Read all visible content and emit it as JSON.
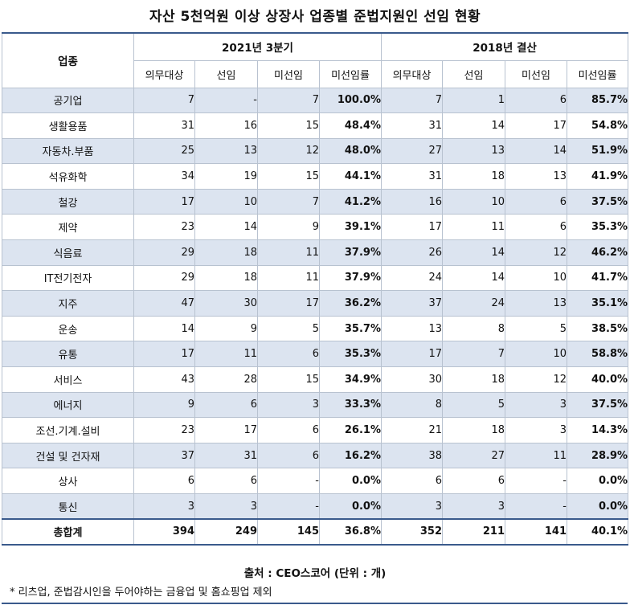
{
  "title": "자산 5천억원 이상 상장사 업종별 준법지원인 선임 현황",
  "header": {
    "industry": "업종",
    "period_2021": "2021년 3분기",
    "period_2018": "2018년 결산",
    "columns": [
      "의무대상",
      "선임",
      "미선임",
      "미선임률"
    ]
  },
  "rows": [
    {
      "name": "공기업",
      "a": [
        "7",
        "-",
        "7",
        "100.0%"
      ],
      "b": [
        "7",
        "1",
        "6",
        "85.7%"
      ]
    },
    {
      "name": "생활용품",
      "a": [
        "31",
        "16",
        "15",
        "48.4%"
      ],
      "b": [
        "31",
        "14",
        "17",
        "54.8%"
      ]
    },
    {
      "name": "자동차.부품",
      "a": [
        "25",
        "13",
        "12",
        "48.0%"
      ],
      "b": [
        "27",
        "13",
        "14",
        "51.9%"
      ]
    },
    {
      "name": "석유화학",
      "a": [
        "34",
        "19",
        "15",
        "44.1%"
      ],
      "b": [
        "31",
        "18",
        "13",
        "41.9%"
      ]
    },
    {
      "name": "철강",
      "a": [
        "17",
        "10",
        "7",
        "41.2%"
      ],
      "b": [
        "16",
        "10",
        "6",
        "37.5%"
      ]
    },
    {
      "name": "제약",
      "a": [
        "23",
        "14",
        "9",
        "39.1%"
      ],
      "b": [
        "17",
        "11",
        "6",
        "35.3%"
      ]
    },
    {
      "name": "식음료",
      "a": [
        "29",
        "18",
        "11",
        "37.9%"
      ],
      "b": [
        "26",
        "14",
        "12",
        "46.2%"
      ]
    },
    {
      "name": "IT전기전자",
      "a": [
        "29",
        "18",
        "11",
        "37.9%"
      ],
      "b": [
        "24",
        "14",
        "10",
        "41.7%"
      ]
    },
    {
      "name": "지주",
      "a": [
        "47",
        "30",
        "17",
        "36.2%"
      ],
      "b": [
        "37",
        "24",
        "13",
        "35.1%"
      ]
    },
    {
      "name": "운송",
      "a": [
        "14",
        "9",
        "5",
        "35.7%"
      ],
      "b": [
        "13",
        "8",
        "5",
        "38.5%"
      ]
    },
    {
      "name": "유통",
      "a": [
        "17",
        "11",
        "6",
        "35.3%"
      ],
      "b": [
        "17",
        "7",
        "10",
        "58.8%"
      ]
    },
    {
      "name": "서비스",
      "a": [
        "43",
        "28",
        "15",
        "34.9%"
      ],
      "b": [
        "30",
        "18",
        "12",
        "40.0%"
      ]
    },
    {
      "name": "에너지",
      "a": [
        "9",
        "6",
        "3",
        "33.3%"
      ],
      "b": [
        "8",
        "5",
        "3",
        "37.5%"
      ]
    },
    {
      "name": "조선.기계.설비",
      "a": [
        "23",
        "17",
        "6",
        "26.1%"
      ],
      "b": [
        "21",
        "18",
        "3",
        "14.3%"
      ]
    },
    {
      "name": "건설 및 건자재",
      "a": [
        "37",
        "31",
        "6",
        "16.2%"
      ],
      "b": [
        "38",
        "27",
        "11",
        "28.9%"
      ]
    },
    {
      "name": "상사",
      "a": [
        "6",
        "6",
        "-",
        "0.0%"
      ],
      "b": [
        "6",
        "6",
        "-",
        "0.0%"
      ]
    },
    {
      "name": "통신",
      "a": [
        "3",
        "3",
        "-",
        "0.0%"
      ],
      "b": [
        "3",
        "3",
        "-",
        "0.0%"
      ]
    }
  ],
  "total": {
    "name": "총합계",
    "a": [
      "394",
      "249",
      "145",
      "36.8%"
    ],
    "b": [
      "352",
      "211",
      "141",
      "40.1%"
    ]
  },
  "source": "출처 : CEO스코어 (단위 : 개)",
  "note": "* 리츠업, 준법감시인을 두어야하는 금융업 및 홈쇼핑업 제외",
  "colors": {
    "shade": "#dce4f0",
    "rule": "#3a5a8c",
    "grid": "#b8c2d0"
  }
}
